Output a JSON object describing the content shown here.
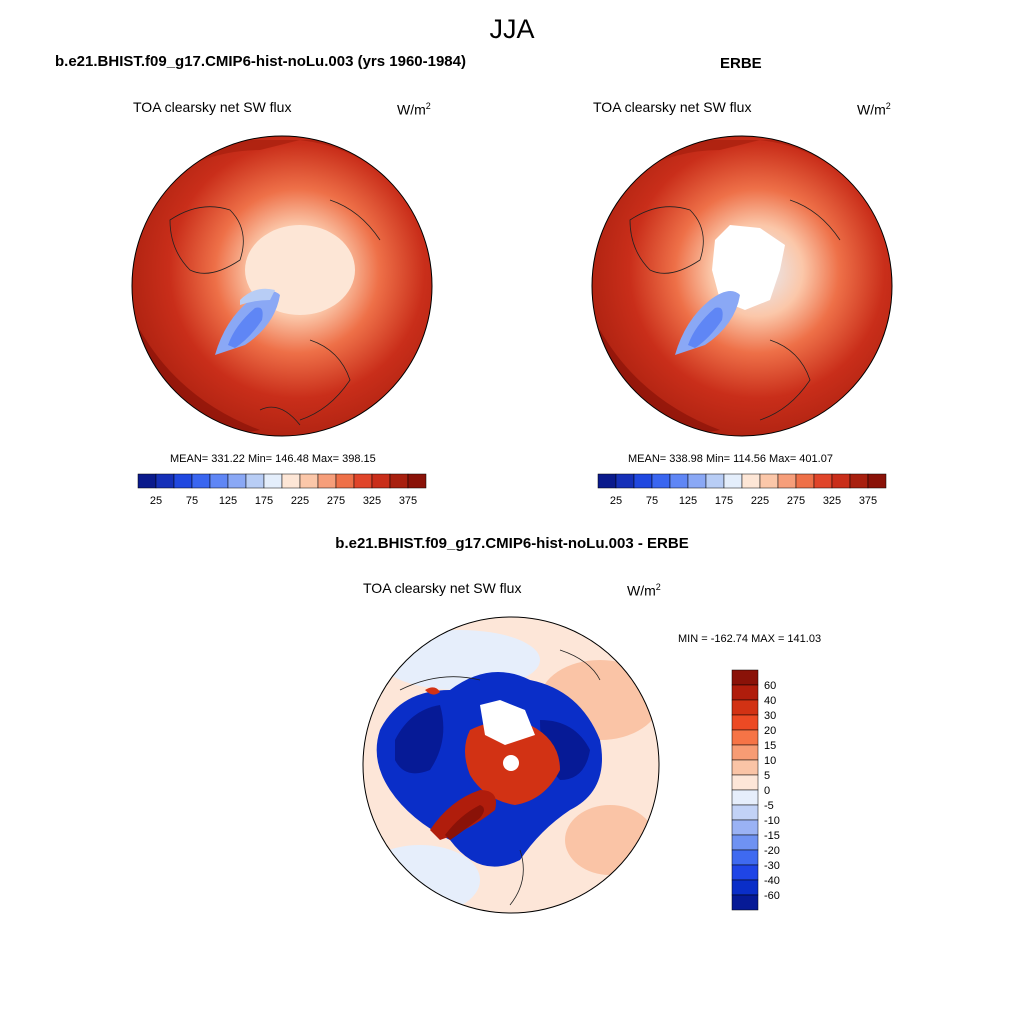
{
  "figure": {
    "season": "JJA",
    "panel_left_title": "b.e21.BHIST.f09_g17.CMIP6-hist-noLu.003 (yrs 1960-1984)",
    "panel_right_title": "ERBE",
    "panel_diff_title": "b.e21.BHIST.f09_g17.CMIP6-hist-noLu.003 - ERBE",
    "variable_label": "TOA clearsky net SW flux",
    "units_base": "W/m",
    "units_exp": "2"
  },
  "chart_data": [
    {
      "type": "heatmap",
      "projection": "north-polar-stereographic",
      "title": "b.e21.BHIST.f09_g17.CMIP6-hist-noLu.003 (yrs 1960-1984)",
      "variable": "TOA clearsky net SW flux",
      "units": "W/m2",
      "stats_text": "MEAN= 331.22  Min= 146.48  Max= 398.15",
      "mean": 331.22,
      "min": 146.48,
      "max": 398.15,
      "colorbar": {
        "orientation": "horizontal",
        "tick_labels": [
          "25",
          "75",
          "125",
          "175",
          "225",
          "275",
          "325",
          "375"
        ],
        "levels": [
          25,
          50,
          75,
          100,
          125,
          150,
          175,
          200,
          225,
          250,
          275,
          300,
          325,
          350,
          375
        ],
        "colors": [
          "#0a1a8c",
          "#1530b8",
          "#2048e0",
          "#3a66f0",
          "#5f86f5",
          "#8aa8f5",
          "#b8cdf5",
          "#e4eefb",
          "#fde6d6",
          "#fbc7a9",
          "#f69e7a",
          "#ee7048",
          "#e0452a",
          "#c92e1a",
          "#a8200f",
          "#8a1208"
        ]
      }
    },
    {
      "type": "heatmap",
      "projection": "north-polar-stereographic",
      "title": "ERBE",
      "variable": "TOA clearsky net SW flux",
      "units": "W/m2",
      "stats_text": "MEAN= 338.98  Min= 114.56  Max= 401.07",
      "mean": 338.98,
      "min": 114.56,
      "max": 401.07,
      "colorbar": {
        "orientation": "horizontal",
        "tick_labels": [
          "25",
          "75",
          "125",
          "175",
          "225",
          "275",
          "325",
          "375"
        ],
        "levels": [
          25,
          50,
          75,
          100,
          125,
          150,
          175,
          200,
          225,
          250,
          275,
          300,
          325,
          350,
          375
        ],
        "colors": [
          "#0a1a8c",
          "#1530b8",
          "#2048e0",
          "#3a66f0",
          "#5f86f5",
          "#8aa8f5",
          "#b8cdf5",
          "#e4eefb",
          "#fde6d6",
          "#fbc7a9",
          "#f69e7a",
          "#ee7048",
          "#e0452a",
          "#c92e1a",
          "#a8200f",
          "#8a1208"
        ]
      }
    },
    {
      "type": "heatmap",
      "projection": "north-polar-stereographic",
      "title": "b.e21.BHIST.f09_g17.CMIP6-hist-noLu.003 - ERBE",
      "variable": "TOA clearsky net SW flux",
      "units": "W/m2",
      "stats_text": "MIN = -162.74 MAX = 141.03",
      "min": -162.74,
      "max": 141.03,
      "colorbar": {
        "orientation": "vertical",
        "tick_labels": [
          "60",
          "40",
          "30",
          "20",
          "15",
          "10",
          "5",
          "0",
          "-5",
          "-10",
          "-15",
          "-20",
          "-30",
          "-40",
          "-60"
        ],
        "colors_top_to_bottom": [
          "#8a1208",
          "#b01d0c",
          "#d23214",
          "#ec4a24",
          "#f67446",
          "#f79c74",
          "#fac4a6",
          "#fde6d8",
          "#e6eefb",
          "#c2d2f6",
          "#9ab2f4",
          "#6f92f2",
          "#3f6af0",
          "#1f45e6",
          "#0a2ec8",
          "#061a96"
        ]
      }
    }
  ]
}
